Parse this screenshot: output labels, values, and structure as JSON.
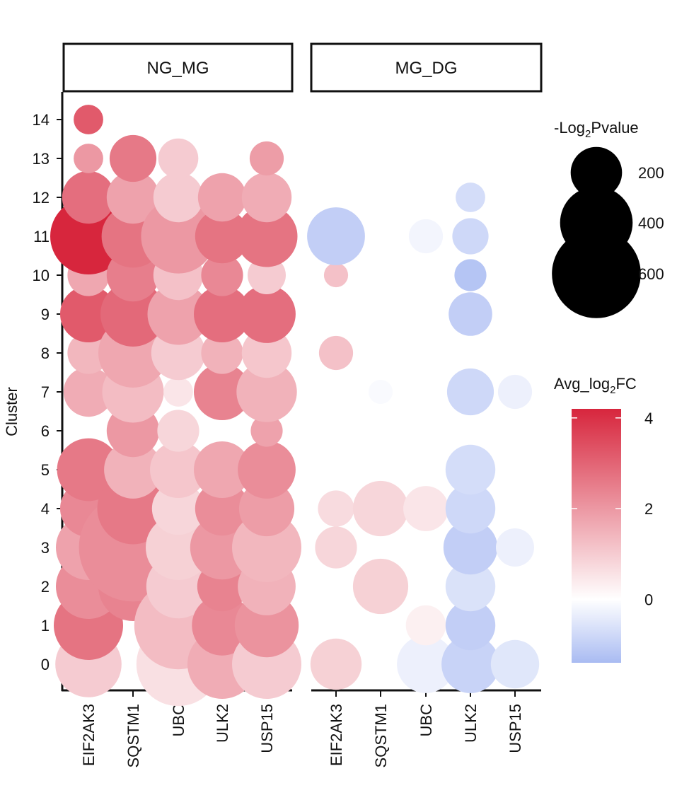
{
  "chart_data": {
    "type": "dot",
    "panels": [
      "NG_MG",
      "MG_DG"
    ],
    "genes": [
      "EIF2AK3",
      "SQSTM1",
      "UBC",
      "ULK2",
      "USP15"
    ],
    "clusters": [
      "0",
      "1",
      "2",
      "3",
      "4",
      "5",
      "6",
      "7",
      "8",
      "9",
      "10",
      "11",
      "12",
      "13",
      "14"
    ],
    "ylabel": "Cluster",
    "size_legend": {
      "title_parts": [
        "-Log",
        "2",
        "Pvalue"
      ],
      "values": [
        200,
        400,
        600
      ],
      "labels": [
        "200",
        "400",
        "600"
      ]
    },
    "color_legend": {
      "title_parts": [
        "Avg_log",
        "2",
        "FC"
      ],
      "ticks": [
        0,
        2,
        4
      ],
      "tick_labels": [
        "0",
        "2",
        "4"
      ],
      "range": [
        -1.4,
        4.2
      ],
      "low_color": "#a9bbf2",
      "mid_color": "#ffffff",
      "high_color": "#d7263d"
    },
    "points": [
      {
        "panel": "NG_MG",
        "gene": "EIF2AK3",
        "cluster": "0",
        "log2fc": 1.0,
        "neglog2p": 300
      },
      {
        "panel": "NG_MG",
        "gene": "EIF2AK3",
        "cluster": "1",
        "log2fc": 2.7,
        "neglog2p": 330
      },
      {
        "panel": "NG_MG",
        "gene": "EIF2AK3",
        "cluster": "2",
        "log2fc": 2.2,
        "neglog2p": 290
      },
      {
        "panel": "NG_MG",
        "gene": "EIF2AK3",
        "cluster": "3",
        "log2fc": 1.8,
        "neglog2p": 290
      },
      {
        "panel": "NG_MG",
        "gene": "EIF2AK3",
        "cluster": "4",
        "log2fc": 2.3,
        "neglog2p": 220
      },
      {
        "panel": "NG_MG",
        "gene": "EIF2AK3",
        "cluster": "5",
        "log2fc": 2.6,
        "neglog2p": 270
      },
      {
        "panel": "NG_MG",
        "gene": "EIF2AK3",
        "cluster": "7",
        "log2fc": 1.6,
        "neglog2p": 170
      },
      {
        "panel": "NG_MG",
        "gene": "EIF2AK3",
        "cluster": "8",
        "log2fc": 1.4,
        "neglog2p": 120
      },
      {
        "panel": "NG_MG",
        "gene": "EIF2AK3",
        "cluster": "9",
        "log2fc": 3.2,
        "neglog2p": 220
      },
      {
        "panel": "NG_MG",
        "gene": "EIF2AK3",
        "cluster": "10",
        "log2fc": 1.7,
        "neglog2p": 120
      },
      {
        "panel": "NG_MG",
        "gene": "EIF2AK3",
        "cluster": "11",
        "log2fc": 4.2,
        "neglog2p": 400
      },
      {
        "panel": "NG_MG",
        "gene": "EIF2AK3",
        "cluster": "12",
        "log2fc": 2.8,
        "neglog2p": 190
      },
      {
        "panel": "NG_MG",
        "gene": "EIF2AK3",
        "cluster": "13",
        "log2fc": 2.0,
        "neglog2p": 60
      },
      {
        "panel": "NG_MG",
        "gene": "EIF2AK3",
        "cluster": "14",
        "log2fc": 3.2,
        "neglog2p": 60
      },
      {
        "panel": "NG_MG",
        "gene": "SQSTM1",
        "cluster": "2",
        "log2fc": 2.4,
        "neglog2p": 330
      },
      {
        "panel": "NG_MG",
        "gene": "SQSTM1",
        "cluster": "3",
        "log2fc": 2.2,
        "neglog2p": 800
      },
      {
        "panel": "NG_MG",
        "gene": "SQSTM1",
        "cluster": "4",
        "log2fc": 2.6,
        "neglog2p": 350
      },
      {
        "panel": "NG_MG",
        "gene": "SQSTM1",
        "cluster": "5",
        "log2fc": 1.5,
        "neglog2p": 230
      },
      {
        "panel": "NG_MG",
        "gene": "SQSTM1",
        "cluster": "6",
        "log2fc": 2.0,
        "neglog2p": 190
      },
      {
        "panel": "NG_MG",
        "gene": "SQSTM1",
        "cluster": "7",
        "log2fc": 1.3,
        "neglog2p": 260
      },
      {
        "panel": "NG_MG",
        "gene": "SQSTM1",
        "cluster": "8",
        "log2fc": 1.7,
        "neglog2p": 330
      },
      {
        "panel": "NG_MG",
        "gene": "SQSTM1",
        "cluster": "9",
        "log2fc": 2.9,
        "neglog2p": 290
      },
      {
        "panel": "NG_MG",
        "gene": "SQSTM1",
        "cluster": "10",
        "log2fc": 2.5,
        "neglog2p": 190
      },
      {
        "panel": "NG_MG",
        "gene": "SQSTM1",
        "cluster": "11",
        "log2fc": 2.7,
        "neglog2p": 270
      },
      {
        "panel": "NG_MG",
        "gene": "SQSTM1",
        "cluster": "12",
        "log2fc": 1.8,
        "neglog2p": 190
      },
      {
        "panel": "NG_MG",
        "gene": "SQSTM1",
        "cluster": "13",
        "log2fc": 2.6,
        "neglog2p": 150
      },
      {
        "panel": "NG_MG",
        "gene": "UBC",
        "cluster": "0",
        "log2fc": 0.6,
        "neglog2p": 480
      },
      {
        "panel": "NG_MG",
        "gene": "UBC",
        "cluster": "1",
        "log2fc": 1.3,
        "neglog2p": 530
      },
      {
        "panel": "NG_MG",
        "gene": "UBC",
        "cluster": "2",
        "log2fc": 1.0,
        "neglog2p": 280
      },
      {
        "panel": "NG_MG",
        "gene": "UBC",
        "cluster": "3",
        "log2fc": 0.9,
        "neglog2p": 290
      },
      {
        "panel": "NG_MG",
        "gene": "UBC",
        "cluster": "4",
        "log2fc": 0.8,
        "neglog2p": 190
      },
      {
        "panel": "NG_MG",
        "gene": "UBC",
        "cluster": "5",
        "log2fc": 1.1,
        "neglog2p": 220
      },
      {
        "panel": "NG_MG",
        "gene": "UBC",
        "cluster": "6",
        "log2fc": 0.8,
        "neglog2p": 120
      },
      {
        "panel": "NG_MG",
        "gene": "UBC",
        "cluster": "7",
        "log2fc": 0.5,
        "neglog2p": 60
      },
      {
        "panel": "NG_MG",
        "gene": "UBC",
        "cluster": "8",
        "log2fc": 1.0,
        "neglog2p": 200
      },
      {
        "panel": "NG_MG",
        "gene": "UBC",
        "cluster": "9",
        "log2fc": 1.8,
        "neglog2p": 260
      },
      {
        "panel": "NG_MG",
        "gene": "UBC",
        "cluster": "10",
        "log2fc": 1.2,
        "neglog2p": 170
      },
      {
        "panel": "NG_MG",
        "gene": "UBC",
        "cluster": "11",
        "log2fc": 2.0,
        "neglog2p": 380
      },
      {
        "panel": "NG_MG",
        "gene": "UBC",
        "cluster": "12",
        "log2fc": 1.0,
        "neglog2p": 170
      },
      {
        "panel": "NG_MG",
        "gene": "UBC",
        "cluster": "13",
        "log2fc": 1.0,
        "neglog2p": 110
      },
      {
        "panel": "NG_MG",
        "gene": "ULK2",
        "cluster": "0",
        "log2fc": 1.6,
        "neglog2p": 330
      },
      {
        "panel": "NG_MG",
        "gene": "ULK2",
        "cluster": "1",
        "log2fc": 2.3,
        "neglog2p": 250
      },
      {
        "panel": "NG_MG",
        "gene": "ULK2",
        "cluster": "2",
        "log2fc": 2.4,
        "neglog2p": 170
      },
      {
        "panel": "NG_MG",
        "gene": "ULK2",
        "cluster": "3",
        "log2fc": 2.0,
        "neglog2p": 280
      },
      {
        "panel": "NG_MG",
        "gene": "ULK2",
        "cluster": "4",
        "log2fc": 2.2,
        "neglog2p": 200
      },
      {
        "panel": "NG_MG",
        "gene": "ULK2",
        "cluster": "5",
        "log2fc": 1.7,
        "neglog2p": 220
      },
      {
        "panel": "NG_MG",
        "gene": "ULK2",
        "cluster": "7",
        "log2fc": 2.4,
        "neglog2p": 220
      },
      {
        "panel": "NG_MG",
        "gene": "ULK2",
        "cluster": "8",
        "log2fc": 1.5,
        "neglog2p": 120
      },
      {
        "panel": "NG_MG",
        "gene": "ULK2",
        "cluster": "9",
        "log2fc": 2.8,
        "neglog2p": 220
      },
      {
        "panel": "NG_MG",
        "gene": "ULK2",
        "cluster": "10",
        "log2fc": 2.3,
        "neglog2p": 120
      },
      {
        "panel": "NG_MG",
        "gene": "ULK2",
        "cluster": "11",
        "log2fc": 2.7,
        "neglog2p": 200
      },
      {
        "panel": "NG_MG",
        "gene": "ULK2",
        "cluster": "12",
        "log2fc": 1.8,
        "neglog2p": 160
      },
      {
        "panel": "NG_MG",
        "gene": "USP15",
        "cluster": "0",
        "log2fc": 1.0,
        "neglog2p": 330
      },
      {
        "panel": "NG_MG",
        "gene": "USP15",
        "cluster": "1",
        "log2fc": 2.1,
        "neglog2p": 280
      },
      {
        "panel": "NG_MG",
        "gene": "USP15",
        "cluster": "2",
        "log2fc": 1.5,
        "neglog2p": 230
      },
      {
        "panel": "NG_MG",
        "gene": "USP15",
        "cluster": "3",
        "log2fc": 1.4,
        "neglog2p": 330
      },
      {
        "panel": "NG_MG",
        "gene": "USP15",
        "cluster": "4",
        "log2fc": 1.9,
        "neglog2p": 210
      },
      {
        "panel": "NG_MG",
        "gene": "USP15",
        "cluster": "5",
        "log2fc": 2.2,
        "neglog2p": 230
      },
      {
        "panel": "NG_MG",
        "gene": "USP15",
        "cluster": "6",
        "log2fc": 1.8,
        "neglog2p": 70
      },
      {
        "panel": "NG_MG",
        "gene": "USP15",
        "cluster": "7",
        "log2fc": 1.5,
        "neglog2p": 250
      },
      {
        "panel": "NG_MG",
        "gene": "USP15",
        "cluster": "8",
        "log2fc": 1.1,
        "neglog2p": 170
      },
      {
        "panel": "NG_MG",
        "gene": "USP15",
        "cluster": "9",
        "log2fc": 2.8,
        "neglog2p": 230
      },
      {
        "panel": "NG_MG",
        "gene": "USP15",
        "cluster": "10",
        "log2fc": 1.0,
        "neglog2p": 100
      },
      {
        "panel": "NG_MG",
        "gene": "USP15",
        "cluster": "11",
        "log2fc": 2.7,
        "neglog2p": 260
      },
      {
        "panel": "NG_MG",
        "gene": "USP15",
        "cluster": "12",
        "log2fc": 1.6,
        "neglog2p": 170
      },
      {
        "panel": "NG_MG",
        "gene": "USP15",
        "cluster": "13",
        "log2fc": 1.9,
        "neglog2p": 80
      },
      {
        "panel": "MG_DG",
        "gene": "EIF2AK3",
        "cluster": "0",
        "log2fc": 0.9,
        "neglog2p": 180
      },
      {
        "panel": "MG_DG",
        "gene": "EIF2AK3",
        "cluster": "3",
        "log2fc": 0.8,
        "neglog2p": 120
      },
      {
        "panel": "MG_DG",
        "gene": "EIF2AK3",
        "cluster": "4",
        "log2fc": 0.7,
        "neglog2p": 90
      },
      {
        "panel": "MG_DG",
        "gene": "EIF2AK3",
        "cluster": "8",
        "log2fc": 1.2,
        "neglog2p": 80
      },
      {
        "panel": "MG_DG",
        "gene": "EIF2AK3",
        "cluster": "10",
        "log2fc": 1.2,
        "neglog2p": 40
      },
      {
        "panel": "MG_DG",
        "gene": "EIF2AK3",
        "cluster": "11",
        "log2fc": -1.0,
        "neglog2p": 230
      },
      {
        "panel": "MG_DG",
        "gene": "SQSTM1",
        "cluster": "2",
        "log2fc": 0.9,
        "neglog2p": 210
      },
      {
        "panel": "MG_DG",
        "gene": "SQSTM1",
        "cluster": "4",
        "log2fc": 0.8,
        "neglog2p": 210
      },
      {
        "panel": "MG_DG",
        "gene": "SQSTM1",
        "cluster": "7",
        "log2fc": -0.1,
        "neglog2p": 40
      },
      {
        "panel": "MG_DG",
        "gene": "UBC",
        "cluster": "0",
        "log2fc": -0.3,
        "neglog2p": 230
      },
      {
        "panel": "MG_DG",
        "gene": "UBC",
        "cluster": "1",
        "log2fc": 0.3,
        "neglog2p": 110
      },
      {
        "panel": "MG_DG",
        "gene": "UBC",
        "cluster": "4",
        "log2fc": 0.5,
        "neglog2p": 140
      },
      {
        "panel": "MG_DG",
        "gene": "UBC",
        "cluster": "11",
        "log2fc": -0.2,
        "neglog2p": 80
      },
      {
        "panel": "MG_DG",
        "gene": "ULK2",
        "cluster": "0",
        "log2fc": -0.9,
        "neglog2p": 230
      },
      {
        "panel": "MG_DG",
        "gene": "ULK2",
        "cluster": "1",
        "log2fc": -1.0,
        "neglog2p": 170
      },
      {
        "panel": "MG_DG",
        "gene": "ULK2",
        "cluster": "2",
        "log2fc": -0.6,
        "neglog2p": 170
      },
      {
        "panel": "MG_DG",
        "gene": "ULK2",
        "cluster": "3",
        "log2fc": -1.0,
        "neglog2p": 200
      },
      {
        "panel": "MG_DG",
        "gene": "ULK2",
        "cluster": "4",
        "log2fc": -0.8,
        "neglog2p": 170
      },
      {
        "panel": "MG_DG",
        "gene": "ULK2",
        "cluster": "5",
        "log2fc": -0.7,
        "neglog2p": 170
      },
      {
        "panel": "MG_DG",
        "gene": "ULK2",
        "cluster": "7",
        "log2fc": -0.8,
        "neglog2p": 150
      },
      {
        "panel": "MG_DG",
        "gene": "ULK2",
        "cluster": "9",
        "log2fc": -1.0,
        "neglog2p": 130
      },
      {
        "panel": "MG_DG",
        "gene": "ULK2",
        "cluster": "10",
        "log2fc": -1.2,
        "neglog2p": 70
      },
      {
        "panel": "MG_DG",
        "gene": "ULK2",
        "cluster": "11",
        "log2fc": -0.8,
        "neglog2p": 90
      },
      {
        "panel": "MG_DG",
        "gene": "ULK2",
        "cluster": "12",
        "log2fc": -0.7,
        "neglog2p": 60
      },
      {
        "panel": "MG_DG",
        "gene": "USP15",
        "cluster": "0",
        "log2fc": -0.5,
        "neglog2p": 160
      },
      {
        "panel": "MG_DG",
        "gene": "USP15",
        "cluster": "3",
        "log2fc": -0.3,
        "neglog2p": 100
      },
      {
        "panel": "MG_DG",
        "gene": "USP15",
        "cluster": "7",
        "log2fc": -0.3,
        "neglog2p": 80
      }
    ]
  }
}
